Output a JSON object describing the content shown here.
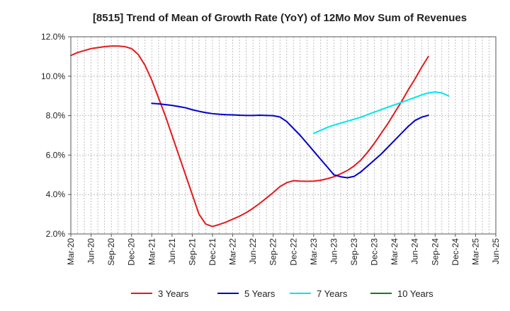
{
  "chart_data": {
    "type": "line",
    "title": "[8515]  Trend of Mean of Growth Rate (YoY) of 12Mo Mov Sum of Revenues",
    "xlabel": "",
    "ylabel": "",
    "y_ticks": [
      2.0,
      4.0,
      6.0,
      8.0,
      10.0,
      12.0
    ],
    "y_tick_labels": [
      "2.0%",
      "4.0%",
      "6.0%",
      "8.0%",
      "10.0%",
      "12.0%"
    ],
    "ylim": [
      2.0,
      12.0
    ],
    "x_tick_labels": [
      "Mar-20",
      "Jun-20",
      "Sep-20",
      "Dec-20",
      "Mar-21",
      "Jun-21",
      "Sep-21",
      "Dec-21",
      "Mar-22",
      "Jun-22",
      "Sep-22",
      "Dec-22",
      "Mar-23",
      "Jun-23",
      "Sep-23",
      "Dec-23",
      "Mar-24",
      "Jun-24",
      "Sep-24",
      "Dec-24",
      "Mar-25",
      "Jun-25"
    ],
    "x_months": [
      "Mar-20",
      "Apr-20",
      "May-20",
      "Jun-20",
      "Jul-20",
      "Aug-20",
      "Sep-20",
      "Oct-20",
      "Nov-20",
      "Dec-20",
      "Jan-21",
      "Feb-21",
      "Mar-21",
      "Apr-21",
      "May-21",
      "Jun-21",
      "Jul-21",
      "Aug-21",
      "Sep-21",
      "Oct-21",
      "Nov-21",
      "Dec-21",
      "Jan-22",
      "Feb-22",
      "Mar-22",
      "Apr-22",
      "May-22",
      "Jun-22",
      "Jul-22",
      "Aug-22",
      "Sep-22",
      "Oct-22",
      "Nov-22",
      "Dec-22",
      "Jan-23",
      "Feb-23",
      "Mar-23",
      "Apr-23",
      "May-23",
      "Jun-23",
      "Jul-23",
      "Aug-23",
      "Sep-23",
      "Oct-23",
      "Nov-23",
      "Dec-23",
      "Jan-24",
      "Feb-24",
      "Mar-24",
      "Apr-24",
      "May-24",
      "Jun-24",
      "Jul-24",
      "Aug-24",
      "Sep-24",
      "Oct-24",
      "Nov-24",
      "Dec-24",
      "Jan-25",
      "Feb-25",
      "Mar-25",
      "Apr-25",
      "May-25",
      "Jun-25"
    ],
    "legend_position": "bottom",
    "grid": true,
    "series": [
      {
        "name": "3 Years",
        "color": "#e31a1c",
        "start_index": 0,
        "values": [
          11.05,
          11.2,
          11.3,
          11.4,
          11.45,
          11.5,
          11.53,
          11.53,
          11.5,
          11.4,
          11.1,
          10.55,
          9.8,
          8.9,
          8.0,
          7.0,
          6.0,
          5.0,
          4.0,
          3.0,
          2.5,
          2.38,
          2.48,
          2.6,
          2.75,
          2.9,
          3.08,
          3.3,
          3.55,
          3.82,
          4.1,
          4.4,
          4.6,
          4.7,
          4.68,
          4.67,
          4.68,
          4.72,
          4.8,
          4.9,
          5.05,
          5.22,
          5.45,
          5.75,
          6.15,
          6.6,
          7.1,
          7.6,
          8.15,
          8.7,
          9.3,
          9.85,
          10.45,
          11.0
        ]
      },
      {
        "name": "5 Years",
        "color": "#0000cc",
        "start_index": 12,
        "values": [
          8.62,
          8.6,
          8.56,
          8.52,
          8.46,
          8.4,
          8.3,
          8.22,
          8.15,
          8.1,
          8.07,
          8.05,
          8.04,
          8.02,
          8.01,
          8.01,
          8.02,
          8.01,
          8.0,
          7.93,
          7.7,
          7.35,
          7.0,
          6.6,
          6.2,
          5.8,
          5.4,
          5.0,
          4.9,
          4.85,
          4.92,
          5.15,
          5.45,
          5.75,
          6.05,
          6.4,
          6.75,
          7.1,
          7.45,
          7.75,
          7.92,
          8.02
        ]
      },
      {
        "name": "7 Years",
        "color": "#00e5ee",
        "start_index": 36,
        "values": [
          7.1,
          7.25,
          7.4,
          7.52,
          7.62,
          7.72,
          7.82,
          7.92,
          8.05,
          8.18,
          8.3,
          8.43,
          8.55,
          8.67,
          8.8,
          8.92,
          9.05,
          9.15,
          9.2,
          9.15,
          9.0
        ]
      },
      {
        "name": "10 Years",
        "color": "#1a7a1a",
        "start_index": 0,
        "values": []
      }
    ]
  }
}
